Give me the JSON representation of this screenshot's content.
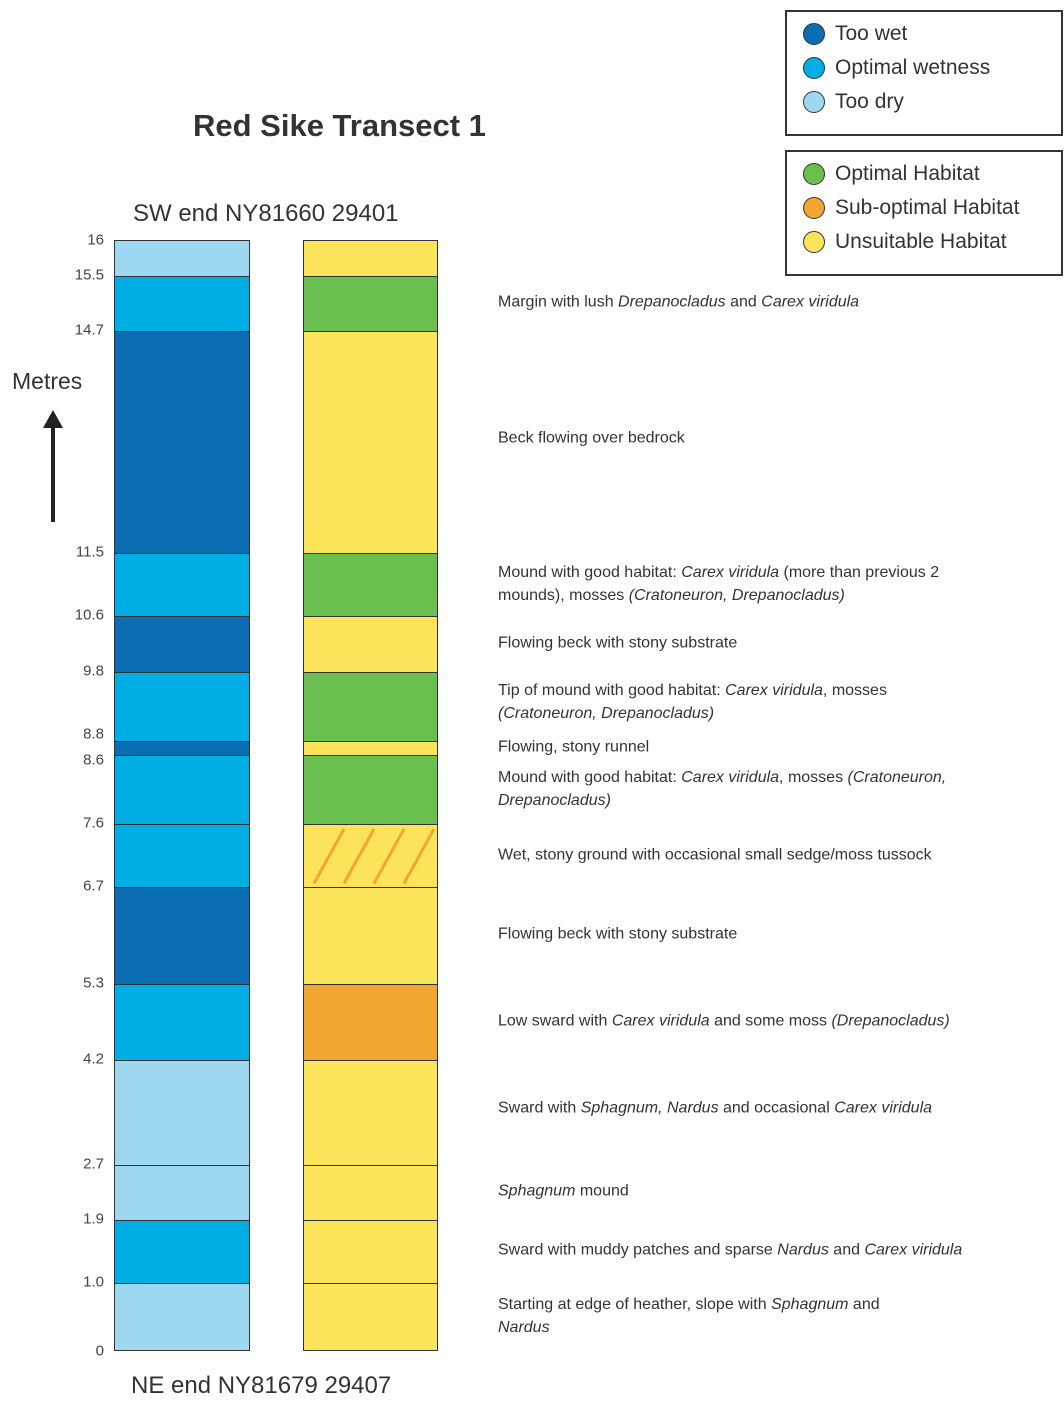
{
  "title": "Red Sike Transect 1",
  "top_label": "SW end NY81660 29401",
  "bottom_label": "NE end NY81679 29407",
  "axis_label": "Metres",
  "colors": {
    "too_wet": "#0a6db3",
    "optimal_wetness": "#00aee6",
    "too_dry": "#9dd8f0",
    "optimal_habitat": "#6bbf4e",
    "sub_optimal_habitat": "#f2a631",
    "unsuitable_habitat": "#fbe45a",
    "hatch": "#f2a631"
  },
  "legend_wetness": [
    {
      "label": "Too wet",
      "key": "too_wet"
    },
    {
      "label": "Optimal wetness",
      "key": "optimal_wetness"
    },
    {
      "label": "Too dry",
      "key": "too_dry"
    }
  ],
  "legend_habitat": [
    {
      "label": "Optimal Habitat",
      "key": "optimal_habitat"
    },
    {
      "label": "Sub-optimal Habitat",
      "key": "sub_optimal_habitat"
    },
    {
      "label": "Unsuitable Habitat",
      "key": "unsuitable_habitat"
    }
  ],
  "ticks": [
    "16",
    "15.5",
    "14.7",
    "11.5",
    "10.6",
    "9.8",
    "8.8",
    "8.6",
    "7.6",
    "6.7",
    "5.3",
    "4.2",
    "2.7",
    "1.9",
    "1.0",
    "0"
  ],
  "wetness_segments": [
    {
      "from": 0,
      "to": 1.0,
      "key": "too_dry"
    },
    {
      "from": 1.0,
      "to": 1.9,
      "key": "optimal_wetness"
    },
    {
      "from": 1.9,
      "to": 2.7,
      "key": "too_dry"
    },
    {
      "from": 2.7,
      "to": 4.2,
      "key": "too_dry"
    },
    {
      "from": 4.2,
      "to": 5.3,
      "key": "optimal_wetness"
    },
    {
      "from": 5.3,
      "to": 6.7,
      "key": "too_wet"
    },
    {
      "from": 6.7,
      "to": 7.6,
      "key": "optimal_wetness"
    },
    {
      "from": 7.6,
      "to": 8.6,
      "key": "optimal_wetness"
    },
    {
      "from": 8.6,
      "to": 8.8,
      "key": "too_wet"
    },
    {
      "from": 8.8,
      "to": 9.8,
      "key": "optimal_wetness"
    },
    {
      "from": 9.8,
      "to": 10.6,
      "key": "too_wet"
    },
    {
      "from": 10.6,
      "to": 11.5,
      "key": "optimal_wetness"
    },
    {
      "from": 11.5,
      "to": 14.7,
      "key": "too_wet"
    },
    {
      "from": 14.7,
      "to": 15.5,
      "key": "optimal_wetness"
    },
    {
      "from": 15.5,
      "to": 16,
      "key": "too_dry"
    }
  ],
  "habitat_segments": [
    {
      "from": 0,
      "to": 1.0,
      "key": "unsuitable_habitat"
    },
    {
      "from": 1.0,
      "to": 1.9,
      "key": "unsuitable_habitat"
    },
    {
      "from": 1.9,
      "to": 2.7,
      "key": "unsuitable_habitat"
    },
    {
      "from": 2.7,
      "to": 4.2,
      "key": "unsuitable_habitat"
    },
    {
      "from": 4.2,
      "to": 5.3,
      "key": "sub_optimal_habitat"
    },
    {
      "from": 5.3,
      "to": 6.7,
      "key": "unsuitable_habitat"
    },
    {
      "from": 6.7,
      "to": 7.6,
      "key": "unsuitable_habitat",
      "hatched": true
    },
    {
      "from": 7.6,
      "to": 8.6,
      "key": "optimal_habitat"
    },
    {
      "from": 8.6,
      "to": 8.8,
      "key": "unsuitable_habitat"
    },
    {
      "from": 8.8,
      "to": 9.8,
      "key": "optimal_habitat"
    },
    {
      "from": 9.8,
      "to": 10.6,
      "key": "unsuitable_habitat"
    },
    {
      "from": 10.6,
      "to": 11.5,
      "key": "optimal_habitat"
    },
    {
      "from": 11.5,
      "to": 14.7,
      "key": "unsuitable_habitat"
    },
    {
      "from": 14.7,
      "to": 15.5,
      "key": "optimal_habitat"
    },
    {
      "from": 15.5,
      "to": 16,
      "key": "unsuitable_habitat"
    }
  ],
  "descriptions": [
    {
      "at": 15.1,
      "parts": [
        {
          "t": "Margin with lush "
        },
        {
          "t": "Drepanocladus",
          "i": true
        },
        {
          "t": " and "
        },
        {
          "t": "Carex viridula",
          "i": true
        }
      ]
    },
    {
      "at": 13.15,
      "parts": [
        {
          "t": "Beck flowing over bedrock"
        }
      ]
    },
    {
      "at": 11.05,
      "parts": [
        {
          "t": "Mound with good habitat: "
        },
        {
          "t": "Carex viridula",
          "i": true
        },
        {
          "t": " (more than previous 2 mounds), mosses "
        },
        {
          "t": "(Cratoneuron, Drepanocladus)",
          "i": true
        }
      ]
    },
    {
      "at": 10.2,
      "parts": [
        {
          "t": "Flowing beck with stony substrate"
        }
      ]
    },
    {
      "at": 9.35,
      "parts": [
        {
          "t": "Tip of mound with good habitat: "
        },
        {
          "t": "Carex viridula",
          "i": true
        },
        {
          "t": ", mosses "
        },
        {
          "t": "(Cratoneuron, Drepanocladus)",
          "i": true
        }
      ]
    },
    {
      "at": 8.7,
      "parts": [
        {
          "t": "Flowing, stony runnel"
        }
      ]
    },
    {
      "at": 8.1,
      "parts": [
        {
          "t": "Mound with good habitat: "
        },
        {
          "t": "Carex viridula",
          "i": true
        },
        {
          "t": ", mosses "
        },
        {
          "t": "(Cratoneuron, Drepanocladus)",
          "i": true
        }
      ]
    },
    {
      "at": 7.15,
      "parts": [
        {
          "t": "Wet, stony ground with occasional small sedge/moss tussock"
        }
      ]
    },
    {
      "at": 6.0,
      "parts": [
        {
          "t": "Flowing beck with stony substrate"
        }
      ]
    },
    {
      "at": 4.75,
      "parts": [
        {
          "t": "Low sward with "
        },
        {
          "t": "Carex viridula",
          "i": true
        },
        {
          "t": " and some moss "
        },
        {
          "t": "(Drepanocladus)",
          "i": true
        }
      ]
    },
    {
      "at": 3.5,
      "parts": [
        {
          "t": "Sward with "
        },
        {
          "t": "Sphagnum, Nardus",
          "i": true
        },
        {
          "t": " and occasional "
        },
        {
          "t": "Carex viridula",
          "i": true
        }
      ]
    },
    {
      "at": 2.3,
      "parts": [
        {
          "t": "Sphagnum",
          "i": true
        },
        {
          "t": " mound"
        }
      ]
    },
    {
      "at": 1.45,
      "parts": [
        {
          "t": "Sward with muddy patches and sparse "
        },
        {
          "t": "Nardus",
          "i": true
        },
        {
          "t": " and "
        },
        {
          "t": "Carex viridula",
          "i": true
        }
      ]
    },
    {
      "at": 0.5,
      "parts": [
        {
          "t": "Starting at edge of heather, slope with "
        },
        {
          "t": "Sphagnum",
          "i": true
        },
        {
          "t": " and "
        },
        {
          "t": "Nardus",
          "i": true
        }
      ]
    }
  ]
}
